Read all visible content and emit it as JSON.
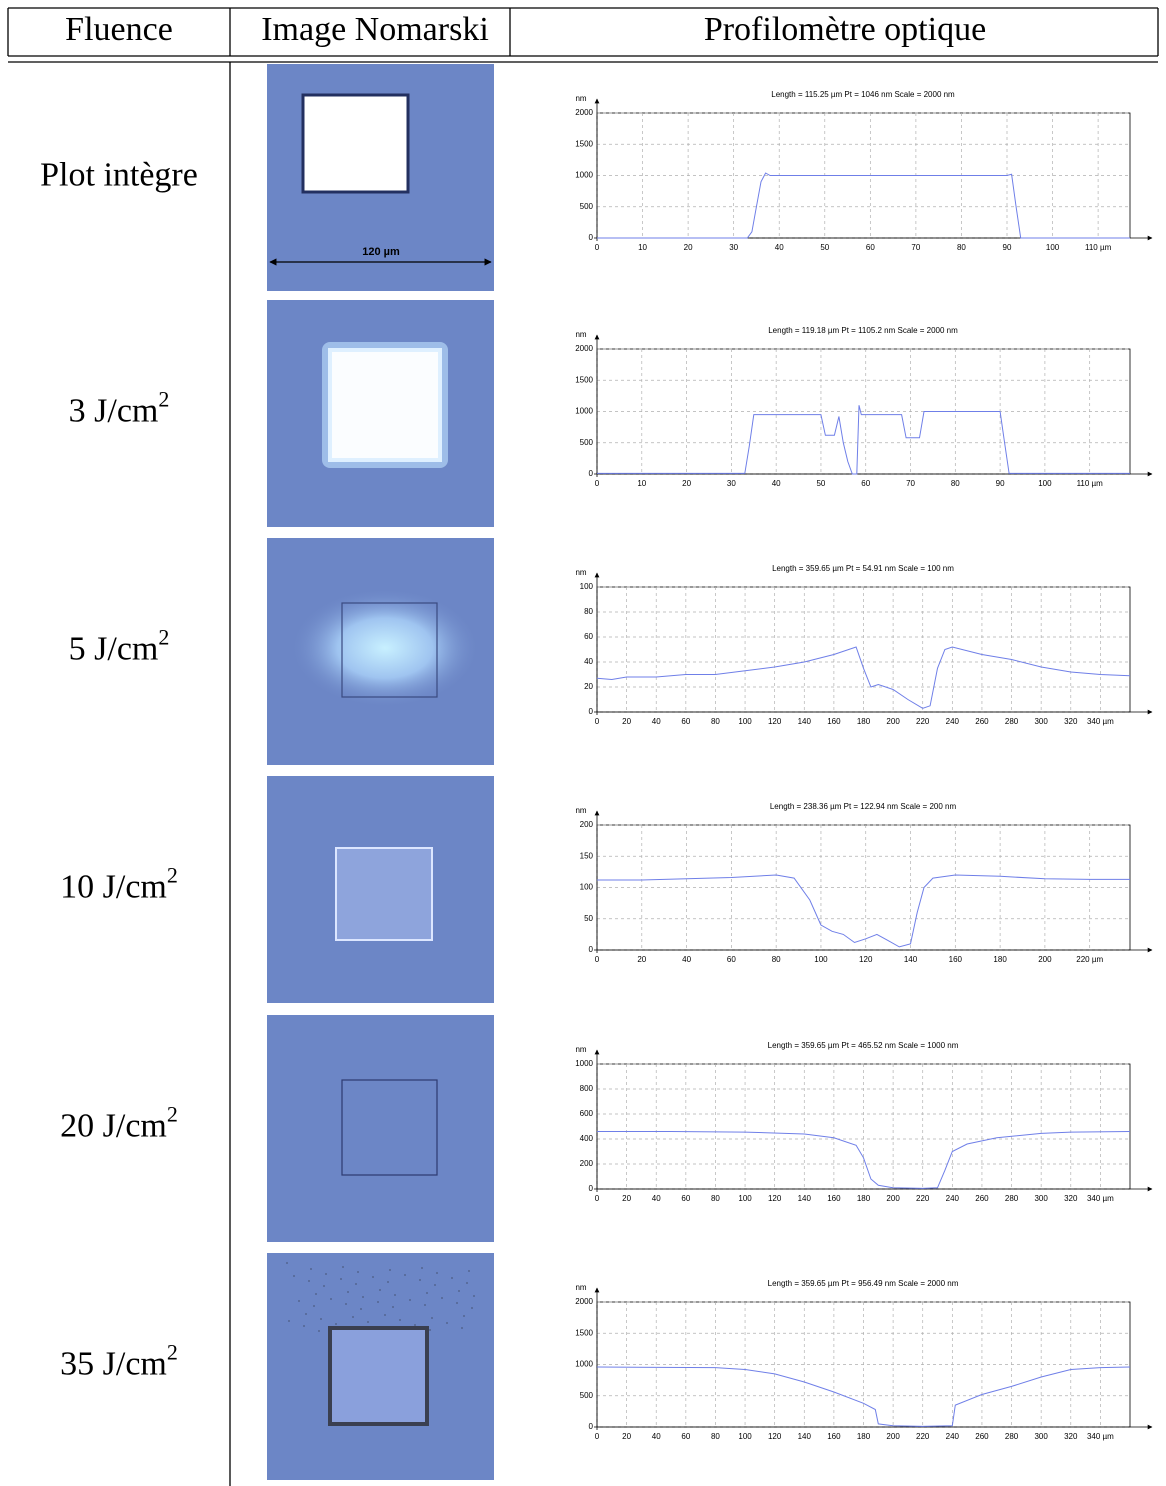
{
  "table": {
    "headers": [
      "Fluence",
      "Image Nomarski",
      "Profilomètre optique"
    ],
    "rows": [
      {
        "fluence": {
          "text": "Plot intègre"
        },
        "image": {
          "scale_label": "120 µm"
        },
        "profile": {
          "type": "line",
          "title": "Length = 115.25 µm  Pt = 1046 nm  Scale = 2000 nm",
          "y_unit": "nm",
          "color": "#6f7fe8",
          "grid": true,
          "xlim": [
            0,
            117
          ],
          "ylim": [
            0,
            2000
          ],
          "xticks": [
            0,
            10,
            20,
            30,
            40,
            50,
            60,
            70,
            80,
            90,
            100,
            {
              "value": 110,
              "label": "110 µm"
            }
          ],
          "yticks": [
            0,
            500,
            1000,
            1500,
            2000
          ],
          "x": [
            0,
            33,
            34,
            35,
            36,
            37,
            38,
            90,
            91,
            92,
            93,
            117
          ],
          "values": [
            0,
            0,
            100,
            500,
            900,
            1040,
            1000,
            1000,
            1020,
            500,
            0,
            0
          ]
        }
      },
      {
        "fluence": {
          "text": "3 J/cm",
          "sup": "2"
        },
        "image": {},
        "profile": {
          "type": "line",
          "title": "Length = 119.18 µm  Pt = 1105.2 nm  Scale = 2000 nm",
          "y_unit": "nm",
          "color": "#6f7fe8",
          "grid": true,
          "xlim": [
            0,
            119
          ],
          "ylim": [
            0,
            2000
          ],
          "xticks": [
            0,
            10,
            20,
            30,
            40,
            50,
            60,
            70,
            80,
            90,
            100,
            {
              "value": 110,
              "label": "110 µm"
            }
          ],
          "yticks": [
            0,
            500,
            1000,
            1500,
            2000
          ],
          "x": [
            0,
            33,
            34,
            35,
            50,
            51,
            53,
            54,
            55,
            56,
            57,
            58,
            58.5,
            59,
            60,
            68,
            69,
            72,
            73,
            90,
            91,
            92,
            119
          ],
          "values": [
            10,
            10,
            450,
            950,
            950,
            620,
            620,
            920,
            500,
            200,
            0,
            0,
            1100,
            950,
            950,
            950,
            580,
            580,
            1000,
            1000,
            500,
            10,
            10
          ]
        }
      },
      {
        "fluence": {
          "text": "5 J/cm",
          "sup": "2"
        },
        "image": {},
        "profile": {
          "type": "line",
          "title": "Length = 359.65 µm  Pt = 54.91 nm  Scale = 100 nm",
          "y_unit": "nm",
          "color": "#6f7fe8",
          "grid": true,
          "xlim": [
            0,
            360
          ],
          "ylim": [
            0,
            100
          ],
          "xticks": [
            0,
            20,
            40,
            60,
            80,
            100,
            120,
            140,
            160,
            180,
            200,
            220,
            240,
            260,
            280,
            300,
            320,
            {
              "value": 340,
              "label": "340 µm"
            }
          ],
          "yticks": [
            0,
            20,
            40,
            60,
            80,
            100
          ],
          "x": [
            0,
            10,
            20,
            40,
            60,
            80,
            100,
            120,
            140,
            160,
            170,
            175,
            180,
            185,
            190,
            200,
            210,
            220,
            225,
            230,
            235,
            240,
            260,
            280,
            300,
            320,
            340,
            360
          ],
          "values": [
            27,
            26,
            28,
            28,
            30,
            30,
            33,
            36,
            40,
            46,
            50,
            52,
            35,
            20,
            22,
            18,
            10,
            3,
            5,
            35,
            50,
            52,
            46,
            42,
            36,
            32,
            30,
            29
          ]
        }
      },
      {
        "fluence": {
          "text": "10 J/cm",
          "sup": "2"
        },
        "image": {},
        "profile": {
          "type": "line",
          "title": "Length = 238.36 µm  Pt = 122.94 nm  Scale = 200 nm",
          "y_unit": "nm",
          "color": "#6f7fe8",
          "grid": true,
          "xlim": [
            0,
            238
          ],
          "ylim": [
            0,
            200
          ],
          "xticks": [
            0,
            20,
            40,
            60,
            80,
            100,
            120,
            140,
            160,
            180,
            200,
            {
              "value": 220,
              "label": "220 µm"
            }
          ],
          "yticks": [
            0,
            50,
            100,
            150,
            200
          ],
          "x": [
            0,
            20,
            40,
            60,
            80,
            88,
            95,
            100,
            105,
            110,
            115,
            120,
            125,
            130,
            135,
            140,
            143,
            146,
            150,
            160,
            180,
            200,
            220,
            238
          ],
          "values": [
            112,
            112,
            114,
            116,
            120,
            115,
            80,
            40,
            30,
            25,
            12,
            18,
            25,
            15,
            5,
            10,
            60,
            100,
            115,
            120,
            118,
            114,
            113,
            113
          ]
        }
      },
      {
        "fluence": {
          "text": "20 J/cm",
          "sup": "2"
        },
        "image": {},
        "profile": {
          "type": "line",
          "title": "Length = 359.65 µm  Pt = 465.52 nm  Scale = 1000 nm",
          "y_unit": "nm",
          "color": "#6f7fe8",
          "grid": true,
          "xlim": [
            0,
            360
          ],
          "ylim": [
            0,
            1000
          ],
          "xticks": [
            0,
            20,
            40,
            60,
            80,
            100,
            120,
            140,
            160,
            180,
            200,
            220,
            240,
            260,
            280,
            300,
            320,
            {
              "value": 340,
              "label": "340 µm"
            }
          ],
          "yticks": [
            0,
            200,
            400,
            600,
            800,
            1000
          ],
          "x": [
            0,
            50,
            100,
            140,
            160,
            175,
            180,
            185,
            190,
            200,
            220,
            230,
            235,
            240,
            250,
            270,
            300,
            320,
            360
          ],
          "values": [
            460,
            460,
            455,
            440,
            410,
            350,
            250,
            80,
            30,
            10,
            5,
            10,
            150,
            300,
            360,
            410,
            445,
            455,
            460
          ]
        }
      },
      {
        "fluence": {
          "text": "35 J/cm",
          "sup": "2"
        },
        "image": {},
        "profile": {
          "type": "line",
          "title": "Length = 359.65 µm  Pt = 956.49 nm  Scale = 2000 nm",
          "y_unit": "nm",
          "color": "#6f7fe8",
          "grid": true,
          "xlim": [
            0,
            360
          ],
          "ylim": [
            0,
            2000
          ],
          "xticks": [
            0,
            20,
            40,
            60,
            80,
            100,
            120,
            140,
            160,
            180,
            200,
            220,
            240,
            260,
            280,
            300,
            320,
            {
              "value": 340,
              "label": "340 µm"
            }
          ],
          "yticks": [
            0,
            500,
            1000,
            1500,
            2000
          ],
          "x": [
            0,
            80,
            100,
            120,
            140,
            160,
            180,
            188,
            190,
            200,
            220,
            240,
            242,
            260,
            280,
            300,
            320,
            340,
            360
          ],
          "values": [
            960,
            950,
            920,
            850,
            720,
            560,
            380,
            280,
            50,
            20,
            10,
            20,
            350,
            520,
            650,
            800,
            920,
            950,
            960
          ]
        }
      }
    ]
  }
}
